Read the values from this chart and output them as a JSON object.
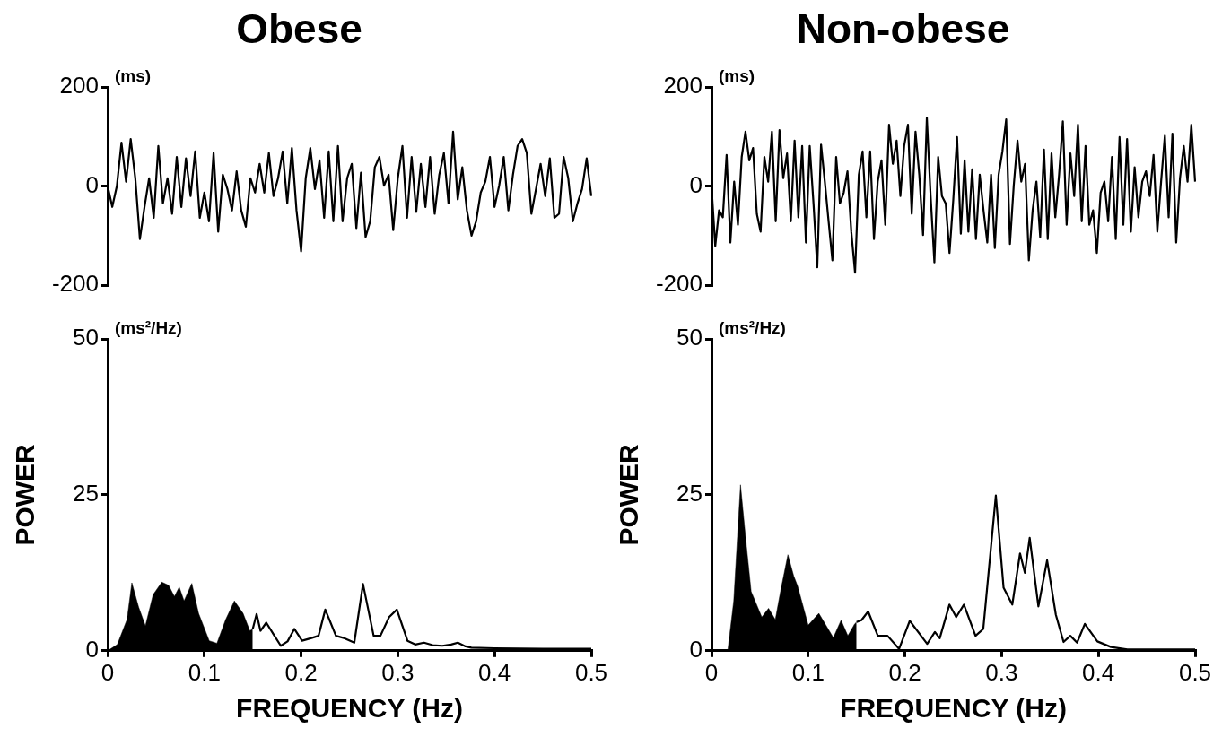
{
  "chart_data": [
    {
      "type": "line",
      "title": "Obese",
      "annotations": [
        "(ms)"
      ],
      "tick_labels": "y",
      "ylim": [
        -200,
        200
      ],
      "yticks": [
        -200,
        0,
        200
      ],
      "categories": [
        null,
        null,
        null,
        null,
        null,
        null,
        null,
        null,
        null,
        null,
        null,
        null,
        null,
        null,
        null,
        null,
        null,
        null,
        null,
        null,
        null,
        null,
        null,
        null,
        null,
        null,
        null,
        null,
        null,
        null,
        null,
        null,
        null,
        null,
        null,
        null,
        null,
        null,
        null,
        null,
        null,
        null,
        null,
        null,
        null,
        null,
        null,
        null,
        null,
        null,
        null,
        null,
        null,
        null,
        null,
        null,
        null,
        null,
        null,
        null,
        null,
        null,
        null,
        null,
        null,
        null,
        null,
        null,
        null,
        null,
        null,
        null,
        null,
        null,
        null,
        null,
        null,
        null,
        null,
        null,
        null,
        null,
        null,
        null,
        null,
        null,
        null,
        null,
        null,
        null,
        null,
        null,
        null,
        null,
        null,
        null,
        null,
        null,
        null,
        null,
        null,
        null,
        null,
        null,
        null,
        null
      ],
      "series": [
        {
          "color": "#000000",
          "values": [
            0,
            -42,
            0,
            88,
            9,
            95,
            16,
            -107,
            -42,
            16,
            -64,
            81,
            -35,
            16,
            -56,
            59,
            -42,
            56,
            -20,
            70,
            -64,
            -13,
            -71,
            67,
            -92,
            23,
            -6,
            -49,
            30,
            -49,
            -82,
            16,
            -13,
            45,
            -13,
            67,
            -20,
            16,
            70,
            -35,
            77,
            -49,
            -132,
            16,
            77,
            -6,
            52,
            -64,
            70,
            -71,
            81,
            -71,
            16,
            45,
            -85,
            27,
            -103,
            -71,
            38,
            59,
            1,
            23,
            -89,
            16,
            81,
            -64,
            59,
            -52,
            45,
            -42,
            59,
            -56,
            23,
            67,
            -35,
            110,
            -27,
            38,
            -49,
            -100,
            -71,
            -13,
            9,
            59,
            -42,
            1,
            59,
            -49,
            23,
            81,
            95,
            67,
            -56,
            -6,
            45,
            -20,
            56,
            -64,
            -56,
            59,
            16,
            -71,
            -35,
            -6,
            56,
            -20
          ]
        }
      ]
    },
    {
      "type": "line",
      "title": "Non-obese",
      "annotations": [
        "(ms)"
      ],
      "tick_labels": "y",
      "ylim": [
        -200,
        200
      ],
      "yticks": [
        -200,
        0,
        200
      ],
      "categories": [
        null,
        null,
        null,
        null,
        null,
        null,
        null,
        null,
        null,
        null,
        null,
        null,
        null,
        null,
        null,
        null,
        null,
        null,
        null,
        null,
        null,
        null,
        null,
        null,
        null,
        null,
        null,
        null,
        null,
        null,
        null,
        null,
        null,
        null,
        null,
        null,
        null,
        null,
        null,
        null,
        null,
        null,
        null,
        null,
        null,
        null,
        null,
        null,
        null,
        null,
        null,
        null,
        null,
        null,
        null,
        null,
        null,
        null,
        null,
        null,
        null,
        null,
        null,
        null,
        null,
        null,
        null,
        null,
        null,
        null,
        null,
        null,
        null,
        null,
        null,
        null,
        null,
        null,
        null,
        null,
        null,
        null,
        null,
        null,
        null,
        null,
        null,
        null,
        null,
        null,
        null,
        null,
        null,
        null,
        null,
        null,
        null,
        null,
        null,
        null,
        null,
        null,
        null,
        null,
        null,
        null,
        null,
        null,
        null,
        null,
        null,
        null,
        null,
        null,
        null,
        null,
        null,
        null,
        null,
        null,
        null,
        null,
        null,
        null,
        null,
        null,
        null,
        null,
        null
      ],
      "series": [
        {
          "color": "#000000",
          "values": [
            1,
            -121,
            -49,
            -63,
            63,
            -114,
            9,
            -78,
            59,
            110,
            52,
            77,
            -56,
            -92,
            59,
            9,
            110,
            -71,
            113,
            16,
            66,
            -71,
            92,
            -63,
            81,
            -114,
            81,
            -35,
            -164,
            84,
            9,
            -71,
            -150,
            59,
            -35,
            -13,
            30,
            -92,
            -175,
            23,
            70,
            -63,
            70,
            -107,
            9,
            52,
            -78,
            124,
            45,
            92,
            -20,
            81,
            124,
            -56,
            110,
            23,
            -99,
            138,
            -20,
            -154,
            59,
            -20,
            -35,
            -135,
            -27,
            99,
            -96,
            52,
            -92,
            34,
            -107,
            23,
            -49,
            -114,
            23,
            -125,
            23,
            70,
            135,
            -117,
            1,
            92,
            9,
            45,
            -150,
            -49,
            9,
            -103,
            74,
            -107,
            66,
            -63,
            23,
            131,
            -78,
            66,
            -20,
            124,
            -71,
            81,
            -78,
            -49,
            -135,
            -13,
            9,
            -71,
            59,
            -107,
            99,
            -78,
            95,
            -92,
            38,
            -63,
            9,
            30,
            -20,
            63,
            -92,
            9,
            102,
            -63,
            106,
            -114,
            16,
            81,
            9,
            124,
            9
          ]
        }
      ]
    },
    {
      "type": "line",
      "ylabel": "POWER",
      "xlabel": "FREQUENCY (Hz)",
      "annotations": [
        "(ms²/Hz)"
      ],
      "xlim": [
        0,
        0.5
      ],
      "xticks": [
        0,
        0.1,
        0.2,
        0.3,
        0.4,
        0.5
      ],
      "ylim": [
        0,
        50
      ],
      "yticks": [
        0,
        25,
        50
      ],
      "series": [
        {
          "type": "area",
          "color": "#000000",
          "x": [
            0,
            0.01,
            0.02,
            0.025,
            0.032,
            0.039,
            0.047,
            0.056,
            0.063,
            0.069,
            0.074,
            0.079,
            0.087,
            0.094,
            0.105,
            0.113,
            0.122,
            0.131,
            0.14,
            0.147,
            0.15
          ],
          "values": [
            0,
            1,
            5,
            10.9,
            7,
            4,
            9,
            11,
            10.5,
            8.7,
            10.2,
            8,
            10.8,
            6,
            1.6,
            1.2,
            5,
            8,
            6,
            3.2,
            3.5
          ]
        },
        {
          "color": "#000000",
          "x": [
            0.15,
            0.154,
            0.158,
            0.164,
            0.172,
            0.179,
            0.186,
            0.193,
            0.201,
            0.21,
            0.218,
            0.225,
            0.236,
            0.245,
            0.255,
            0.264,
            0.275,
            0.282,
            0.291,
            0.299,
            0.31,
            0.318,
            0.327,
            0.336,
            0.346,
            0.355,
            0.362,
            0.37,
            0.376,
            0.4,
            0.45,
            0.5
          ],
          "values": [
            3.5,
            5.9,
            3.2,
            4.5,
            2.5,
            0.8,
            1.5,
            3.5,
            1.6,
            2,
            2.4,
            6.6,
            2.4,
            2,
            1.3,
            10.7,
            2.4,
            2.4,
            5.4,
            6.6,
            1.6,
            1,
            1.3,
            0.9,
            0.8,
            1,
            1.3,
            0.7,
            0.5,
            0.4,
            0.3,
            0.3
          ]
        }
      ]
    },
    {
      "type": "line",
      "ylabel": "POWER",
      "xlabel": "FREQUENCY (Hz)",
      "annotations": [
        "(ms²/Hz)"
      ],
      "xlim": [
        0,
        0.5
      ],
      "xticks": [
        0,
        0.1,
        0.2,
        0.3,
        0.4,
        0.5
      ],
      "ylim": [
        0,
        50
      ],
      "yticks": [
        0,
        25,
        50
      ],
      "series": [
        {
          "type": "area",
          "color": "#000000",
          "x": [
            0,
            0.017,
            0.023,
            0.03,
            0.036,
            0.041,
            0.052,
            0.059,
            0.066,
            0.072,
            0.079,
            0.085,
            0.089,
            0.1,
            0.111,
            0.126,
            0.134,
            0.141,
            0.148,
            0.15
          ],
          "values": [
            0,
            0.2,
            8,
            26.6,
            17,
            9.5,
            5.4,
            6.8,
            5,
            10,
            15.4,
            12,
            10.4,
            4.1,
            6,
            2.1,
            4.9,
            2.4,
            4.3,
            4.6
          ]
        },
        {
          "color": "#000000",
          "x": [
            0.15,
            0.155,
            0.162,
            0.172,
            0.182,
            0.194,
            0.205,
            0.223,
            0.231,
            0.236,
            0.246,
            0.253,
            0.261,
            0.273,
            0.281,
            0.294,
            0.302,
            0.311,
            0.319,
            0.324,
            0.329,
            0.338,
            0.347,
            0.356,
            0.364,
            0.371,
            0.378,
            0.386,
            0.399,
            0.413,
            0.43,
            0.5
          ],
          "values": [
            4.6,
            4.9,
            6.3,
            2.4,
            2.4,
            0.3,
            4.8,
            1.1,
            3,
            2,
            7.4,
            5.4,
            7.4,
            2.4,
            3.5,
            24.9,
            10.1,
            7.4,
            15.6,
            12.5,
            18.1,
            7.1,
            14.5,
            5.8,
            1.4,
            2.4,
            1.3,
            4.3,
            1.5,
            0.6,
            0.2,
            0.2
          ]
        }
      ]
    }
  ]
}
